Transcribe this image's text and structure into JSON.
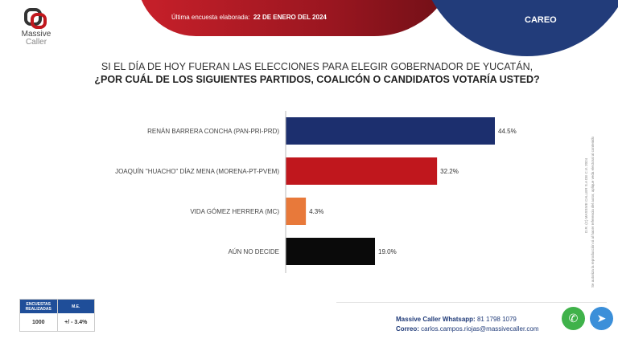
{
  "header": {
    "logo_text": [
      "Massive",
      "Caller"
    ],
    "survey_date_label": "Última encuesta elaborada:",
    "survey_date": "22 DE ENERO DEL 2024",
    "section": "CAREO"
  },
  "question": {
    "line1": "SI EL DÍA DE HOY FUERAN LAS ELECCIONES PARA ELEGIR GOBERNADOR DE YUCATÁN,",
    "line2": "¿POR CUÁL DE LOS SIGUIENTES PARTIDOS, COALICÓN  O CANDIDATOS VOTARÍA USTED?"
  },
  "chart_data": {
    "type": "bar",
    "orientation": "horizontal",
    "categories": [
      "RENÁN BARRERA CONCHA  (PAN-PRI-PRD)",
      "JOAQUÍN \"HUACHO\" DÍAZ MENA  (MORENA-PT-PVEM)",
      "VIDA GÓMEZ HERRERA (MC)",
      "AÚN NO DECIDE"
    ],
    "values": [
      44.5,
      32.2,
      4.3,
      19.0
    ],
    "labels": [
      "44.5%",
      "32.2%",
      "4.3%",
      "19.0%"
    ],
    "colors": [
      "#1c2f6e",
      "#c0171d",
      "#e8793a",
      "#0a0a0a"
    ],
    "xlim": [
      0,
      50
    ],
    "grid": false
  },
  "side_note": {
    "copyright": "D.R. (C) MASSIVE CALLER S.A DE C.V. 2024",
    "notice": "Se autoriza la reproducción si al hacer referencia del autor, aplique veda electoral al contenido"
  },
  "stats": {
    "surveys_header": "ENCUESTAS REALIZADAS",
    "me_header": "M.E.",
    "surveys": "1000",
    "me": "+/ - 3.4%"
  },
  "contact": {
    "whatsapp_label": "Massive Caller Whatsapp:",
    "whatsapp": "81 1798 1079",
    "email_label": "Correo:",
    "email": "carlos.campos.riojas@massivecaller.com"
  },
  "icons": {
    "whatsapp": "whatsapp-icon",
    "telegram": "telegram-icon"
  }
}
